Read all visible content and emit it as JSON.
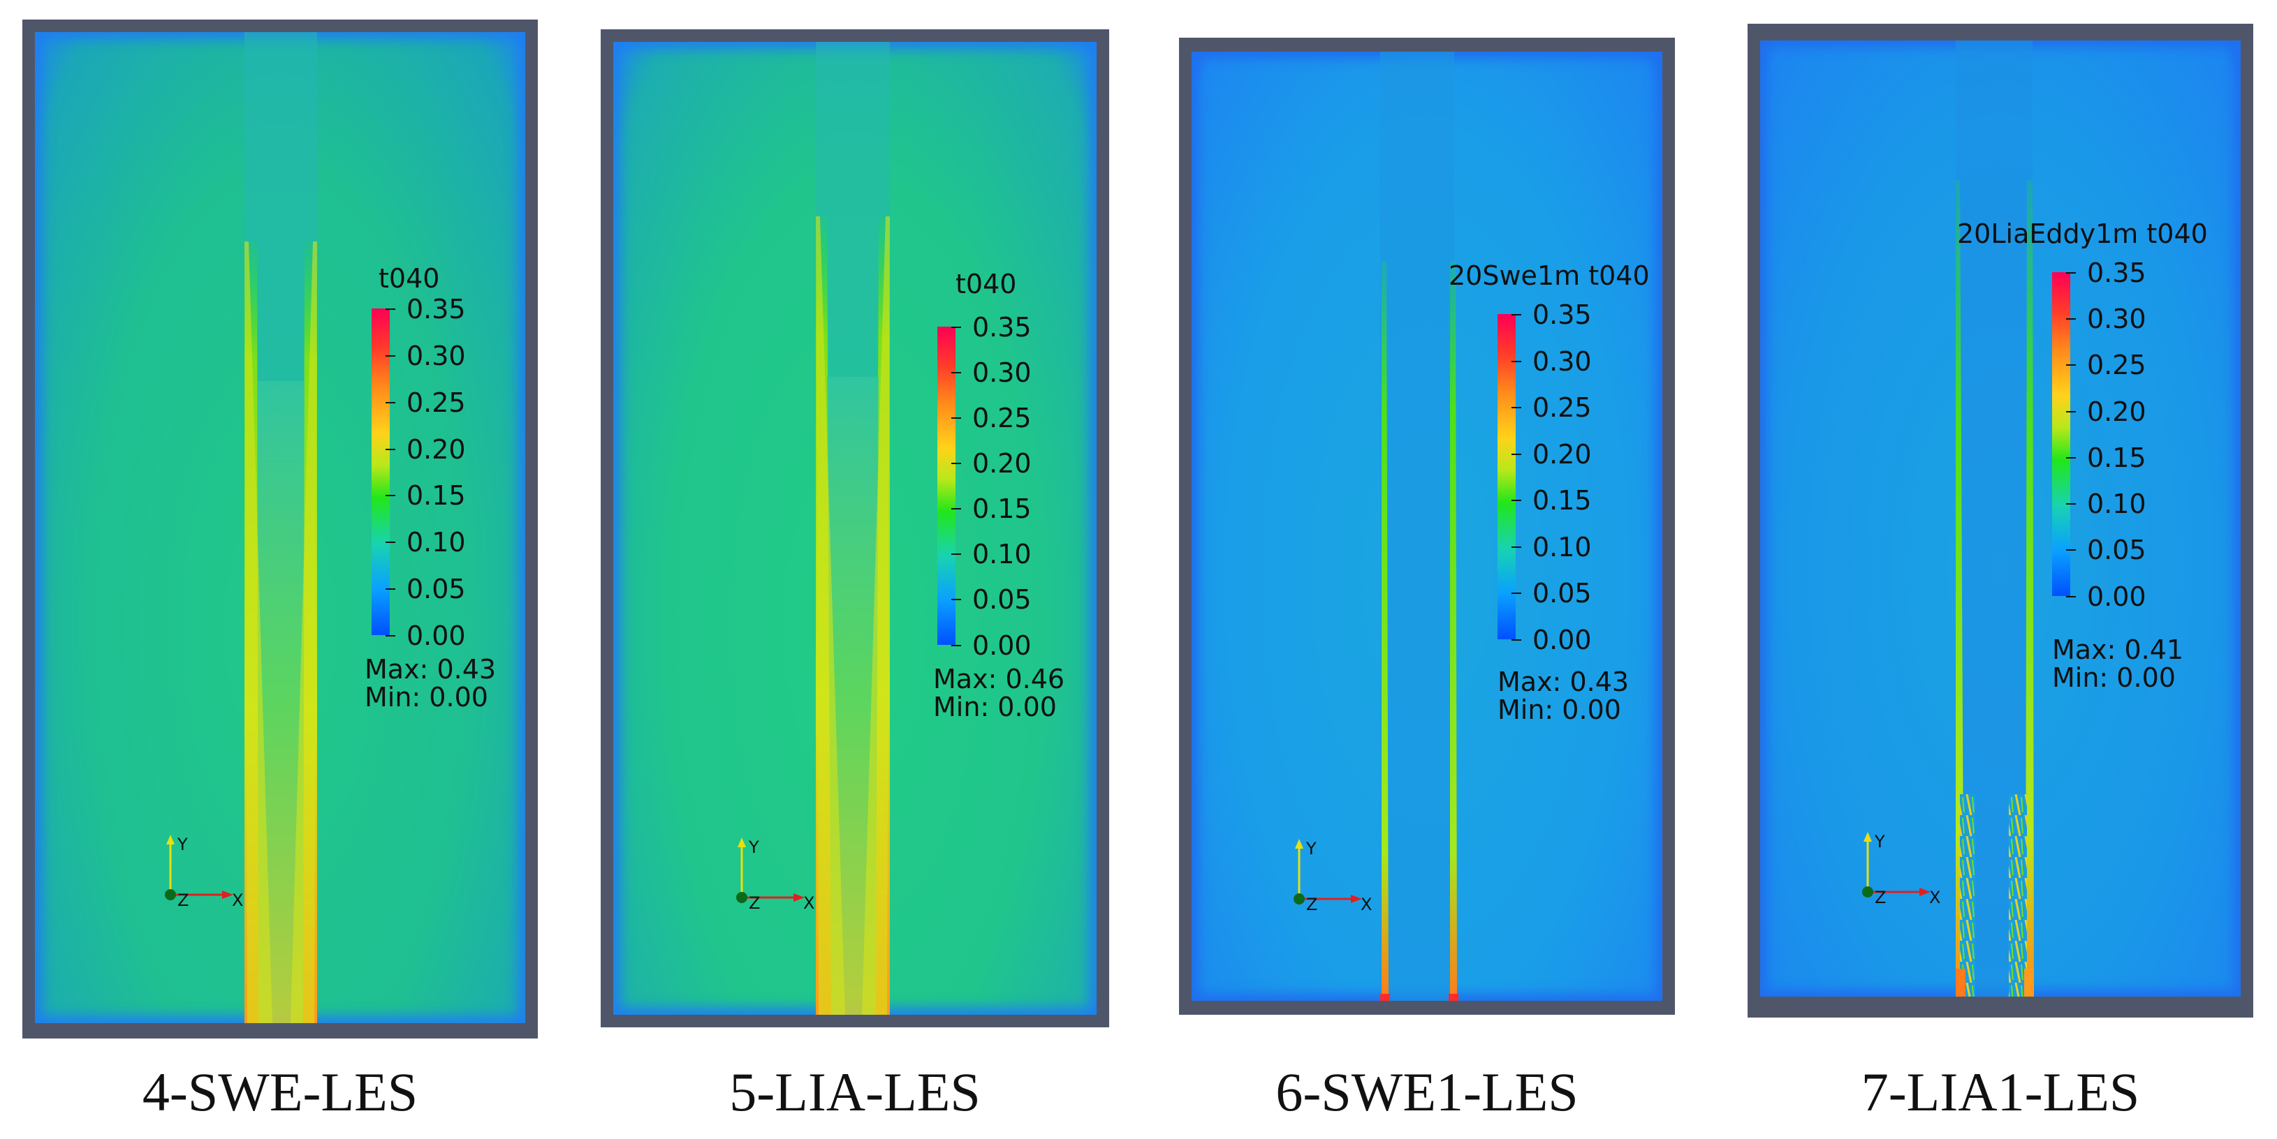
{
  "colorbar_colors": [
    "#0050ff",
    "#0aa0ff",
    "#18d3b0",
    "#22e61a",
    "#b8e81a",
    "#ffd21a",
    "#ff8a1a",
    "#ff3a2a",
    "#ff0055"
  ],
  "panels": [
    {
      "caption": "4-SWE-LES",
      "legend_title": "t040",
      "ticks": [
        "0.35",
        "0.30",
        "0.25",
        "0.20",
        "0.15",
        "0.10",
        "0.05",
        "0.00"
      ],
      "max_label": "Max: 0.43",
      "min_label": "Min: 0.00",
      "axis_labels": {
        "y": "Y",
        "z": "Z",
        "x": "X"
      },
      "field_color": "#1fc08c",
      "edge_color": "#1e7ff5"
    },
    {
      "caption": "5-LIA-LES",
      "legend_title": "t040",
      "ticks": [
        "0.35",
        "0.30",
        "0.25",
        "0.20",
        "0.15",
        "0.10",
        "0.05",
        "0.00"
      ],
      "max_label": "Max: 0.46",
      "min_label": "Min: 0.00",
      "axis_labels": {
        "y": "Y",
        "z": "Z",
        "x": "X"
      },
      "field_color": "#22cc86",
      "edge_color": "#1e7ff5"
    },
    {
      "caption": "6-SWE1-LES",
      "legend_title": "20Swe1m t040",
      "ticks": [
        "0.35",
        "0.30",
        "0.25",
        "0.20",
        "0.15",
        "0.10",
        "0.05",
        "0.00"
      ],
      "max_label": "Max: 0.43",
      "min_label": "Min: 0.00",
      "axis_labels": {
        "y": "Y",
        "z": "Z",
        "x": "X"
      },
      "field_color": "#1aa0e6",
      "edge_color": "#1f74ef"
    },
    {
      "caption": "7-LIA1-LES",
      "legend_title": "20LiaEddy1m t040",
      "ticks": [
        "0.35",
        "0.30",
        "0.25",
        "0.20",
        "0.15",
        "0.10",
        "0.05",
        "0.00"
      ],
      "max_label": "Max: 0.41",
      "min_label": "Min: 0.00",
      "axis_labels": {
        "y": "Y",
        "z": "Z",
        "x": "X"
      },
      "field_color": "#1b9ae8",
      "edge_color": "#1f74ef"
    }
  ]
}
